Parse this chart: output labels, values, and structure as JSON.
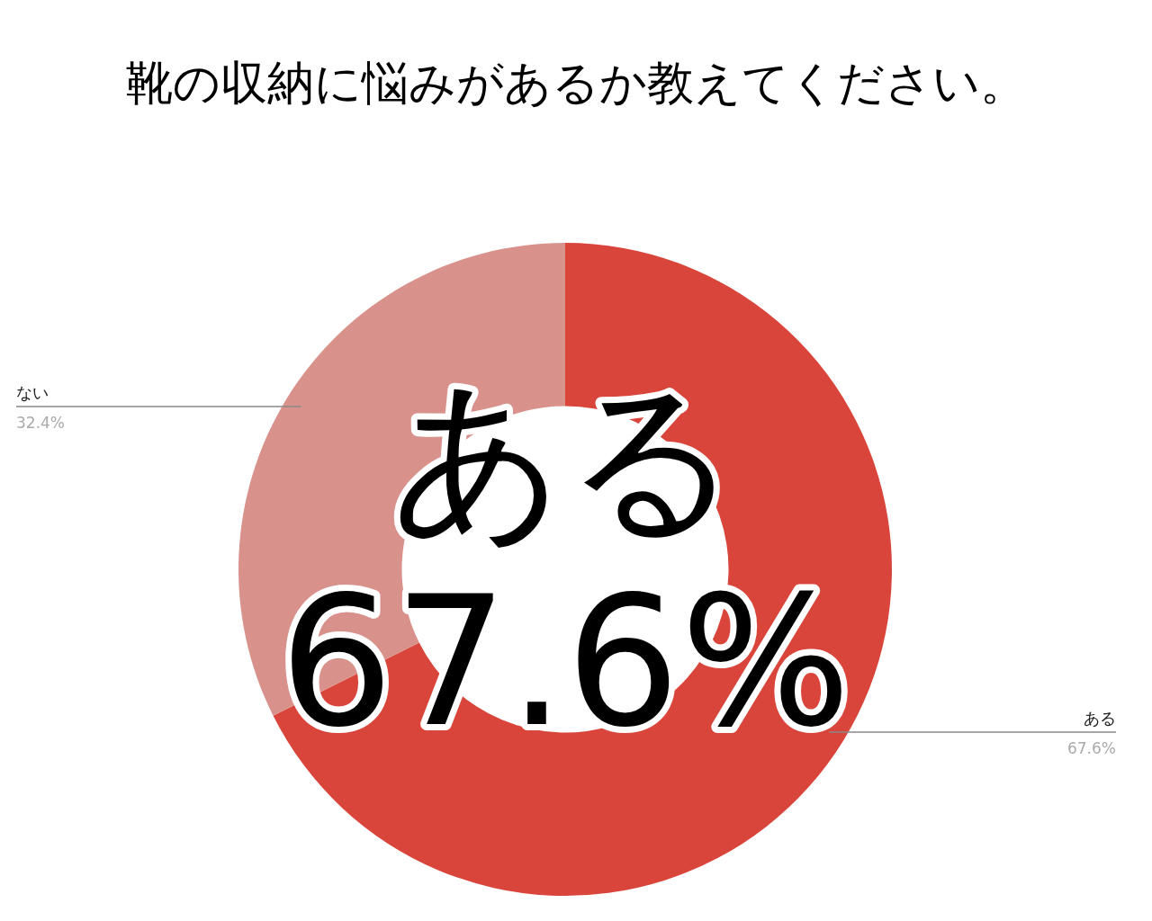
{
  "chart_data": {
    "type": "donut",
    "title": "靴の収納に悩みがあるか教えてください。",
    "categories": [
      "ある",
      "ない"
    ],
    "values": [
      67.6,
      32.4
    ],
    "colors": [
      "#d9453a",
      "#d9918c"
    ],
    "value_labels": [
      "67.6%",
      "32.4%"
    ],
    "annotations": [
      "ある",
      "67.6%"
    ]
  }
}
